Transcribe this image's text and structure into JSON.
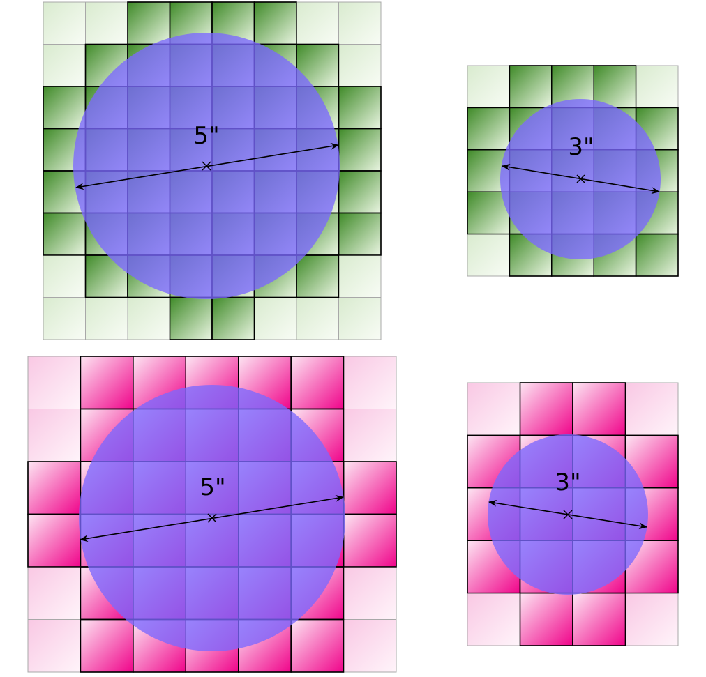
{
  "colors": {
    "green_dark": "#4e9a33",
    "green_light": "#e4f1dc",
    "pink_dark": "#f0088f",
    "pink_light": "#fbd3ea",
    "circle": "#7b68ff",
    "grid_line": "#000000",
    "grid_line_faint": "#a8a8a8"
  },
  "panels": [
    {
      "name": "green-5in",
      "diameter_label": "5\"",
      "scheme": "green",
      "cols": 8,
      "rows": 8,
      "lit": [
        "00111100",
        "01111110",
        "11111111",
        "11111111",
        "11111111",
        "11111111",
        "01111110",
        "00011000"
      ]
    },
    {
      "name": "green-3in",
      "diameter_label": "3\"",
      "scheme": "green",
      "cols": 5,
      "rows": 5,
      "lit": [
        "01110",
        "11111",
        "11111",
        "11111",
        "01111"
      ]
    },
    {
      "name": "pink-5in",
      "diameter_label": "5\"",
      "scheme": "pink",
      "cols": 7,
      "rows": 6,
      "lit": [
        "0111110",
        "0111110",
        "1111111",
        "1111111",
        "0111110",
        "0111110"
      ]
    },
    {
      "name": "pink-3in",
      "diameter_label": "3\"",
      "scheme": "pink",
      "cols": 4,
      "rows": 5,
      "lit": [
        "0110",
        "1111",
        "1111",
        "1111",
        "0110"
      ]
    }
  ]
}
